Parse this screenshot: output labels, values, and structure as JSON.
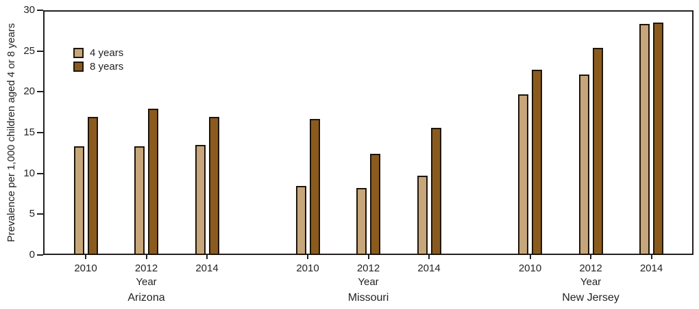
{
  "chart_data": {
    "type": "bar",
    "title": "",
    "ylabel": "Prevalence per 1,000 children aged 4 or 8 years",
    "xlabel": "Year",
    "ylim": [
      0,
      30
    ],
    "yticks": [
      0,
      5,
      10,
      15,
      20,
      25,
      30
    ],
    "grid": false,
    "legend_position": "inside-top-left",
    "axis_color": "#231F20",
    "bar_outline_color": "#1E150A",
    "states": [
      "Arizona",
      "Missouri",
      "New Jersey"
    ],
    "years": [
      "2010",
      "2012",
      "2014"
    ],
    "series": [
      {
        "name": "4 years",
        "color": "#C6A67A",
        "values": [
          [
            13.3,
            13.3,
            13.5
          ],
          [
            8.5,
            8.2,
            9.7
          ],
          [
            19.7,
            22.1,
            28.3
          ]
        ]
      },
      {
        "name": "8 years",
        "color": "#8B5B1E",
        "values": [
          [
            16.9,
            17.9,
            16.9
          ],
          [
            16.7,
            12.4,
            15.6
          ],
          [
            22.7,
            25.4,
            28.5
          ]
        ]
      }
    ]
  }
}
